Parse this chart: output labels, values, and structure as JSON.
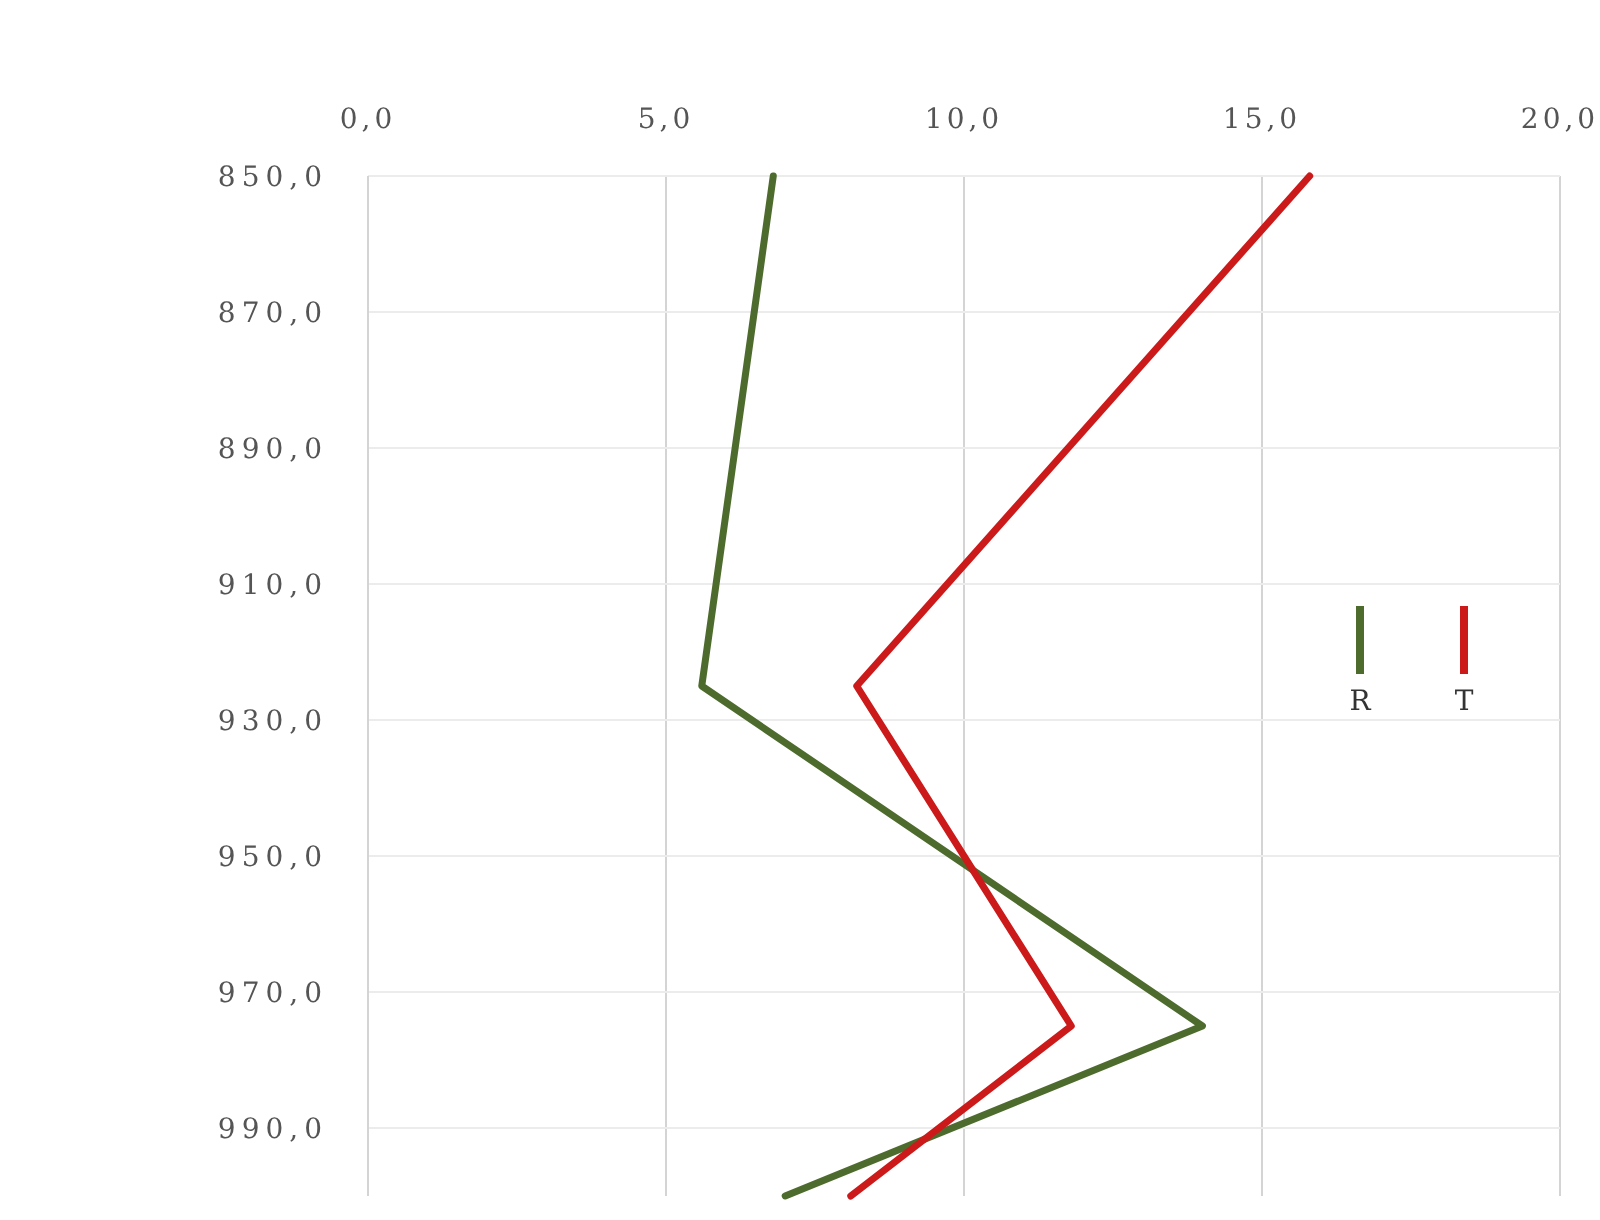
{
  "chart_data": {
    "type": "line",
    "series": [
      {
        "name": "R",
        "color": "#4e6b2e",
        "x": [
          6.8,
          5.6,
          14.0,
          7.0
        ],
        "values": [
          850,
          925,
          975,
          1000
        ]
      },
      {
        "name": "T",
        "color": "#cc1a1a",
        "x": [
          15.8,
          8.2,
          11.8,
          8.1
        ],
        "values": [
          850,
          925,
          975,
          1000
        ]
      }
    ],
    "xlim": [
      0,
      20
    ],
    "xticks": [
      {
        "value": 0,
        "label": "0,0"
      },
      {
        "value": 5,
        "label": "5,0"
      },
      {
        "value": 10,
        "label": "10,0"
      },
      {
        "value": 15,
        "label": "15,0"
      },
      {
        "value": 20,
        "label": "20,0"
      }
    ],
    "ylim": [
      1000,
      850
    ],
    "yticks": [
      {
        "value": 850,
        "label": "850,0"
      },
      {
        "value": 870,
        "label": "870,0"
      },
      {
        "value": 890,
        "label": "890,0"
      },
      {
        "value": 910,
        "label": "910,0"
      },
      {
        "value": 930,
        "label": "930,0"
      },
      {
        "value": 950,
        "label": "950,0"
      },
      {
        "value": 970,
        "label": "970,0"
      },
      {
        "value": 990,
        "label": "990,0"
      }
    ],
    "grid": true,
    "legend": "right",
    "marker": "none",
    "line_style": "solid"
  }
}
